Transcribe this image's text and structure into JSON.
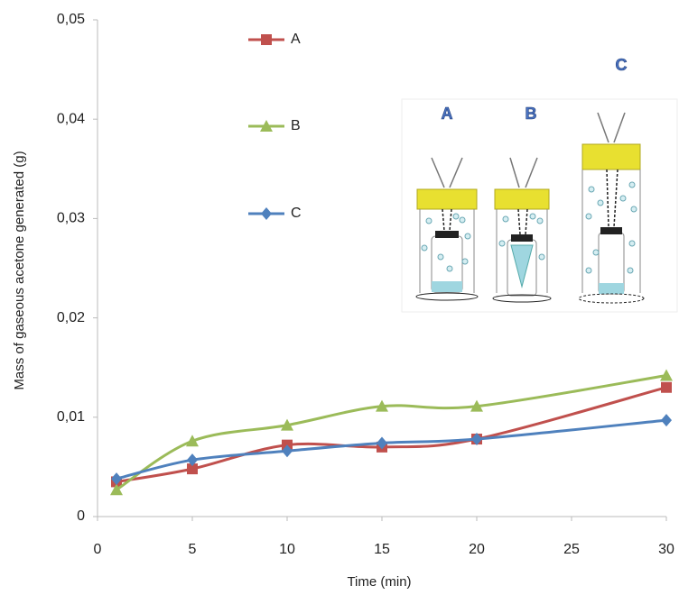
{
  "chart_data": {
    "type": "line",
    "x_label": "Time (min)",
    "y_label": "Mass of gaseous acetone generated (g)",
    "x": [
      1,
      5,
      10,
      15,
      20,
      30
    ],
    "series": [
      {
        "name": "A",
        "color": "#c0504d",
        "marker": "square",
        "values": [
          0.0035,
          0.0048,
          0.0072,
          0.007,
          0.0078,
          0.013
        ]
      },
      {
        "name": "B",
        "color": "#9bbb59",
        "marker": "triangle",
        "values": [
          0.0027,
          0.0076,
          0.0092,
          0.0111,
          0.0111,
          0.0142
        ]
      },
      {
        "name": "C",
        "color": "#4f81bd",
        "marker": "diamond",
        "values": [
          0.0038,
          0.0057,
          0.0066,
          0.0074,
          0.0078,
          0.0097
        ]
      }
    ],
    "xlim": [
      0,
      30
    ],
    "xticks": [
      0,
      5,
      10,
      15,
      20,
      25,
      30
    ],
    "ylim": [
      0,
      0.05
    ],
    "yticks": [
      0,
      {
        "value": 0.01,
        "label": "0,01"
      },
      {
        "value": 0.02,
        "label": "0,02"
      },
      {
        "value": 0.03,
        "label": "0,03"
      },
      {
        "value": 0.04,
        "label": "0,04"
      },
      {
        "value": 0.05,
        "label": "0,05"
      }
    ],
    "grid": false,
    "smooth": true,
    "annotations": [
      "A",
      "B",
      "C"
    ]
  }
}
